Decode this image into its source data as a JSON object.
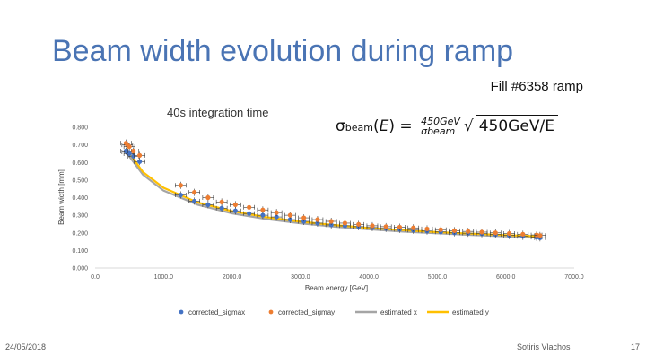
{
  "slide": {
    "title": "Beam width evolution during ramp",
    "fill_label": "Fill #6358 ramp",
    "date": "24/05/2018",
    "author": "Sotiris Vlachos",
    "page": "17"
  },
  "formula": {
    "lhs": "σbeam(E) = ",
    "sigma": "σ",
    "sigma_sub": "beam",
    "stack_top": "450GeV",
    "stack_bottom": "beam",
    "sqrt_num": "450GeV",
    "sqrt_den": "E"
  },
  "chart_data": {
    "type": "scatter",
    "title": "40s integration time",
    "xlabel": "Beam energy [GeV]",
    "ylabel": "Beam width [mm]",
    "xlim": [
      0,
      7000
    ],
    "ylim": [
      0,
      0.8
    ],
    "x_ticks": [
      0,
      1000,
      2000,
      3000,
      4000,
      5000,
      6000,
      7000
    ],
    "x_tick_labels": [
      "0.0",
      "1000.0",
      "2000.0",
      "3000.0",
      "4000.0",
      "5000.0",
      "6000.0",
      "7000.0"
    ],
    "y_ticks": [
      0,
      0.1,
      0.2,
      0.3,
      0.4,
      0.5,
      0.6,
      0.7,
      0.8
    ],
    "y_tick_labels": [
      "0.000",
      "0.100",
      "0.200",
      "0.300",
      "0.400",
      "0.500",
      "0.600",
      "0.700",
      "0.800"
    ],
    "grid": false,
    "legend": "bottom",
    "series": [
      {
        "name": "corrected_sigmax",
        "kind": "points",
        "color": "#4472c4",
        "x": [
          450,
          470,
          500,
          560,
          650,
          1250,
          1450,
          1650,
          1850,
          2050,
          2250,
          2450,
          2650,
          2850,
          3050,
          3250,
          3450,
          3650,
          3850,
          4050,
          4250,
          4450,
          4650,
          4850,
          5050,
          5250,
          5450,
          5650,
          5850,
          6050,
          6250,
          6450,
          6500
        ],
        "y": [
          0.665,
          0.66,
          0.65,
          0.635,
          0.605,
          0.415,
          0.38,
          0.36,
          0.34,
          0.325,
          0.31,
          0.3,
          0.29,
          0.275,
          0.265,
          0.255,
          0.245,
          0.24,
          0.235,
          0.23,
          0.225,
          0.22,
          0.215,
          0.21,
          0.205,
          0.2,
          0.198,
          0.195,
          0.19,
          0.185,
          0.18,
          0.175,
          0.172
        ]
      },
      {
        "name": "corrected_sigmay",
        "kind": "points",
        "color": "#ed7d31",
        "x": [
          450,
          470,
          500,
          560,
          650,
          1250,
          1450,
          1650,
          1850,
          2050,
          2250,
          2450,
          2650,
          2850,
          3050,
          3250,
          3450,
          3650,
          3850,
          4050,
          4250,
          4450,
          4650,
          4850,
          5050,
          5250,
          5450,
          5650,
          5850,
          6050,
          6250,
          6450,
          6500
        ],
        "y": [
          0.71,
          0.7,
          0.69,
          0.665,
          0.64,
          0.47,
          0.43,
          0.4,
          0.375,
          0.36,
          0.345,
          0.33,
          0.315,
          0.3,
          0.285,
          0.275,
          0.265,
          0.255,
          0.248,
          0.24,
          0.235,
          0.232,
          0.228,
          0.222,
          0.218,
          0.212,
          0.208,
          0.204,
          0.2,
          0.196,
          0.192,
          0.188,
          0.185
        ]
      },
      {
        "name": "estimated x",
        "kind": "line",
        "color": "#a5a5a5",
        "x": [
          450,
          700,
          1000,
          1500,
          2000,
          2500,
          3000,
          3500,
          4000,
          4500,
          5000,
          5500,
          6000,
          6500
        ],
        "y": [
          0.66,
          0.53,
          0.44,
          0.36,
          0.311,
          0.278,
          0.254,
          0.235,
          0.22,
          0.207,
          0.197,
          0.188,
          0.18,
          0.173
        ]
      },
      {
        "name": "estimated y",
        "kind": "line",
        "color": "#ffc000",
        "x": [
          450,
          700,
          1000,
          1500,
          2000,
          2500,
          3000,
          3500,
          4000,
          4500,
          5000,
          5500,
          6000,
          6500
        ],
        "y": [
          0.68,
          0.545,
          0.456,
          0.372,
          0.323,
          0.289,
          0.263,
          0.244,
          0.228,
          0.215,
          0.204,
          0.195,
          0.187,
          0.18
        ]
      }
    ]
  }
}
